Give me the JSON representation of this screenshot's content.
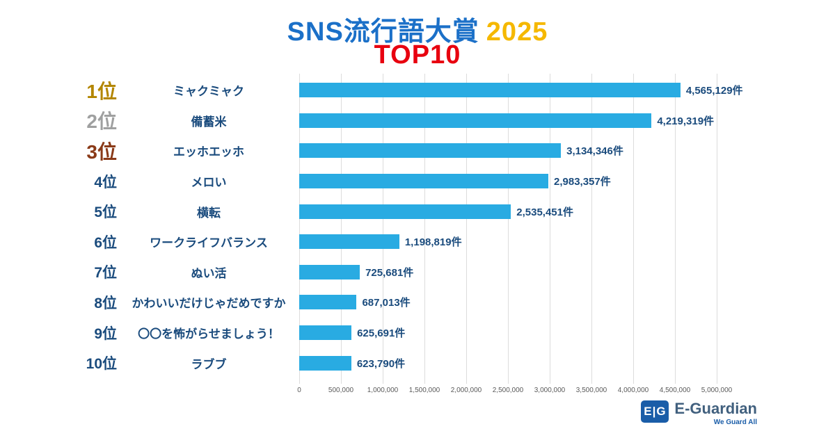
{
  "title": {
    "main": "SNS流行語大賞",
    "year": "2025",
    "sub": "TOP10"
  },
  "colors": {
    "title_blue": "#1B70C8",
    "year_gold": "#F5B800",
    "top10_red": "#E8000F",
    "bar": "#29ABE2",
    "text_navy": "#1A4B7D",
    "grid": "#DCDCDC",
    "rank_colors": [
      "#B38600",
      "#9FA0A0",
      "#8A3A18",
      "#1A4B7D",
      "#1A4B7D",
      "#1A4B7D",
      "#1A4B7D",
      "#1A4B7D",
      "#1A4B7D",
      "#1A4B7D"
    ]
  },
  "chart_data": {
    "type": "bar",
    "orientation": "horizontal",
    "title": "SNS流行語大賞 2025 TOP10",
    "ranks": [
      "1位",
      "2位",
      "3位",
      "4位",
      "5位",
      "6位",
      "7位",
      "8位",
      "9位",
      "10位"
    ],
    "categories": [
      "ミャクミャク",
      "備蓄米",
      "エッホエッホ",
      "メロい",
      "横転",
      "ワークライフバランス",
      "ぬい活",
      "かわいいだけじゃだめですか",
      "〇〇を怖がらせましょう！",
      "ラブブ"
    ],
    "values": [
      4565129,
      4219319,
      3134346,
      2983357,
      2535451,
      1198819,
      725681,
      687013,
      625691,
      623790
    ],
    "value_labels": [
      "4,565,129件",
      "4,219,319件",
      "3,134,346件",
      "2,983,357件",
      "2,535,451件",
      "1,198,819件",
      "725,681件",
      "687,013件",
      "625,691件",
      "623,790件"
    ],
    "xlim": [
      0,
      5000000
    ],
    "x_ticks": [
      "0",
      "500,000",
      "1,000,000",
      "1,500,000",
      "2,000,000",
      "2,500,000",
      "3,000,000",
      "3,500,000",
      "4,000,000",
      "4,500,000",
      "5,000,000"
    ],
    "grid": true,
    "legend": false
  },
  "logo": {
    "icon_text": "E|G",
    "name": "E-Guardian",
    "tagline": "We Guard All"
  }
}
